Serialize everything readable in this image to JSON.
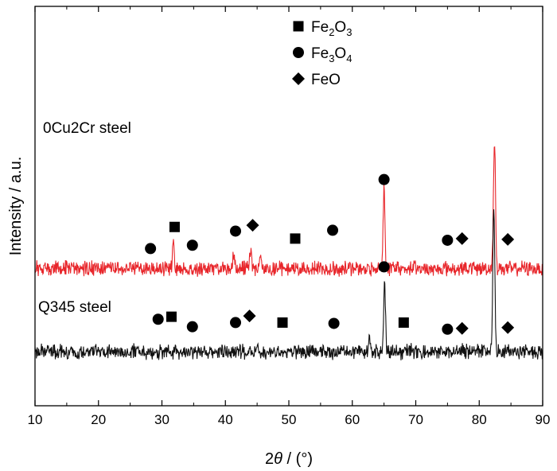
{
  "chart_data": {
    "type": "line",
    "xlabel_prefix": "2",
    "xlabel_theta": "θ",
    "xlabel_suffix": " / (°)",
    "ylabel": "Intensity / a.u.",
    "xlim": [
      10,
      90
    ],
    "xticks": [
      10,
      20,
      30,
      40,
      50,
      60,
      70,
      80,
      90
    ],
    "yticks_shown": false,
    "legend": {
      "placement": "top-center",
      "entries": [
        {
          "marker": "square",
          "base": "Fe",
          "sub1": "2",
          "mid": "O",
          "sub2": "3"
        },
        {
          "marker": "circle",
          "base": "Fe",
          "sub1": "3",
          "mid": "O",
          "sub2": "4"
        },
        {
          "marker": "diamond",
          "base": "FeO",
          "sub1": "",
          "mid": "",
          "sub2": ""
        }
      ]
    },
    "series": [
      {
        "name": "0Cu2Cr steel",
        "color": "#e8262b",
        "baseline": 100,
        "noise": 7,
        "peaks": [
          {
            "x": 31.8,
            "h": 40,
            "w": 0.12
          },
          {
            "x": 41.3,
            "h": 18,
            "w": 0.15
          },
          {
            "x": 44.0,
            "h": 22,
            "w": 0.15
          },
          {
            "x": 45.5,
            "h": 16,
            "w": 0.15
          },
          {
            "x": 65.0,
            "h": 100,
            "w": 0.14
          },
          {
            "x": 82.4,
            "h": 155,
            "w": 0.16
          }
        ],
        "markers": [
          {
            "x": 28.2,
            "shape": "circle",
            "level": 124
          },
          {
            "x": 32.0,
            "shape": "square",
            "level": 150
          },
          {
            "x": 34.8,
            "shape": "circle",
            "level": 128
          },
          {
            "x": 41.6,
            "shape": "circle",
            "level": 145
          },
          {
            "x": 44.3,
            "shape": "diamond",
            "level": 152
          },
          {
            "x": 51.0,
            "shape": "square",
            "level": 136
          },
          {
            "x": 56.9,
            "shape": "circle",
            "level": 146
          },
          {
            "x": 65.0,
            "shape": "circle",
            "level": 207
          },
          {
            "x": 75.0,
            "shape": "circle",
            "level": 134
          },
          {
            "x": 77.3,
            "shape": "diamond",
            "level": 136
          },
          {
            "x": 84.5,
            "shape": "diamond",
            "level": 135
          }
        ]
      },
      {
        "name": "Q345 steel",
        "color": "#111111",
        "baseline": 0,
        "noise": 7,
        "peaks": [
          {
            "x": 62.7,
            "h": 20,
            "w": 0.12
          },
          {
            "x": 65.1,
            "h": 85,
            "w": 0.14
          },
          {
            "x": 82.3,
            "h": 175,
            "w": 0.16
          }
        ],
        "markers": [
          {
            "x": 29.4,
            "shape": "circle",
            "level": 39
          },
          {
            "x": 31.5,
            "shape": "square",
            "level": 42
          },
          {
            "x": 34.8,
            "shape": "circle",
            "level": 30
          },
          {
            "x": 41.6,
            "shape": "circle",
            "level": 35
          },
          {
            "x": 43.8,
            "shape": "diamond",
            "level": 43
          },
          {
            "x": 49.0,
            "shape": "square",
            "level": 35
          },
          {
            "x": 57.1,
            "shape": "circle",
            "level": 34
          },
          {
            "x": 65.0,
            "shape": "circle",
            "level": 102
          },
          {
            "x": 68.1,
            "shape": "square",
            "level": 35
          },
          {
            "x": 75.0,
            "shape": "circle",
            "level": 27
          },
          {
            "x": 77.3,
            "shape": "diamond",
            "level": 28
          },
          {
            "x": 84.5,
            "shape": "diamond",
            "level": 29
          }
        ]
      }
    ],
    "annotations": [
      {
        "text": "0Cu2Cr steel",
        "series": 0
      },
      {
        "text": "Q345 steel",
        "series": 1
      }
    ]
  }
}
